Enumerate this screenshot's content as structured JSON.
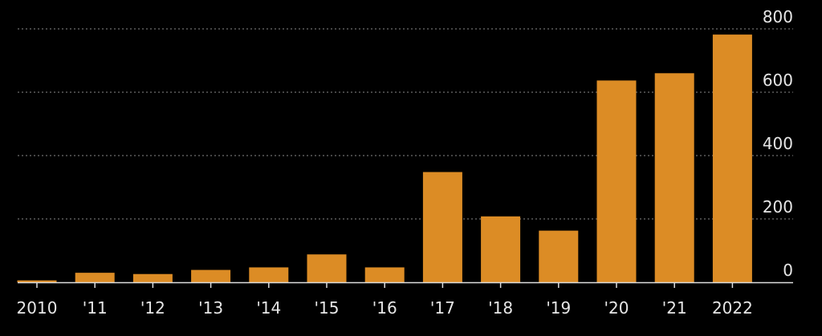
{
  "chart_data": {
    "type": "bar",
    "categories": [
      "2010",
      "'11",
      "'12",
      "'13",
      "'14",
      "'15",
      "'16",
      "'17",
      "'18",
      "'19",
      "'20",
      "'21",
      "2022"
    ],
    "values": [
      6,
      30,
      26,
      39,
      47,
      88,
      47,
      348,
      208,
      163,
      637,
      660,
      782
    ],
    "ylim": [
      0,
      800
    ],
    "yticks": [
      0,
      200,
      400,
      600,
      800
    ],
    "y_axis_position": "right",
    "grid": true,
    "legend": "none",
    "colors": {
      "background": "#000000",
      "bar": "#dc8c25",
      "grid": "#8a8a8a",
      "axis": "#dddddd",
      "text": "#e6e6e6"
    }
  }
}
